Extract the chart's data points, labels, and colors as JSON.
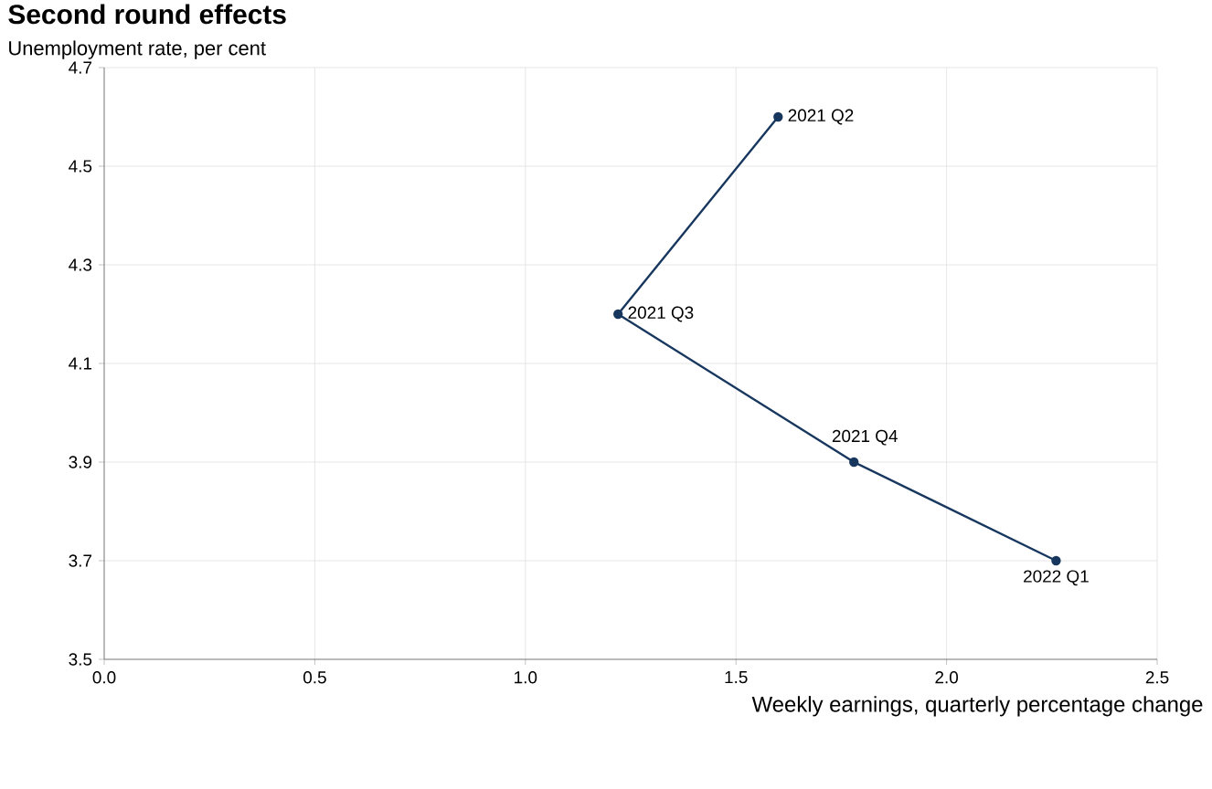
{
  "chart_data": {
    "type": "line",
    "title": "Second round effects",
    "subtitle": "Unemployment rate, per cent",
    "xlabel": "Weekly earnings, quarterly percentage change",
    "x": [
      1.6,
      1.22,
      1.78,
      2.26
    ],
    "series": [
      {
        "color": "#17375e",
        "values": [
          4.6,
          4.2,
          3.9,
          3.7
        ]
      }
    ],
    "annotations": [
      {
        "text": "2021 Q2",
        "x": 1.6,
        "y": 4.6
      },
      {
        "text": "2021 Q3",
        "x": 1.22,
        "y": 4.2
      },
      {
        "text": "2021 Q4",
        "x": 1.78,
        "y": 3.9
      },
      {
        "text": "2022 Q1",
        "x": 2.26,
        "y": 3.7
      }
    ],
    "xlim": [
      0,
      2.5
    ],
    "xticks": [
      {
        "value": 0,
        "label": "0.0"
      },
      {
        "value": 0.5,
        "label": "0.5"
      },
      {
        "value": 1,
        "label": "1.0"
      },
      {
        "value": 1.5,
        "label": "1.5"
      },
      {
        "value": 2,
        "label": "2.0"
      },
      {
        "value": 2.5,
        "label": "2.5"
      }
    ],
    "ylim": [
      3.5,
      4.7
    ],
    "yticks": [
      3.5,
      3.7,
      3.9,
      4.1,
      4.3,
      4.5,
      4.7
    ],
    "grid": true,
    "marker": "circle",
    "line_style": "solid"
  }
}
